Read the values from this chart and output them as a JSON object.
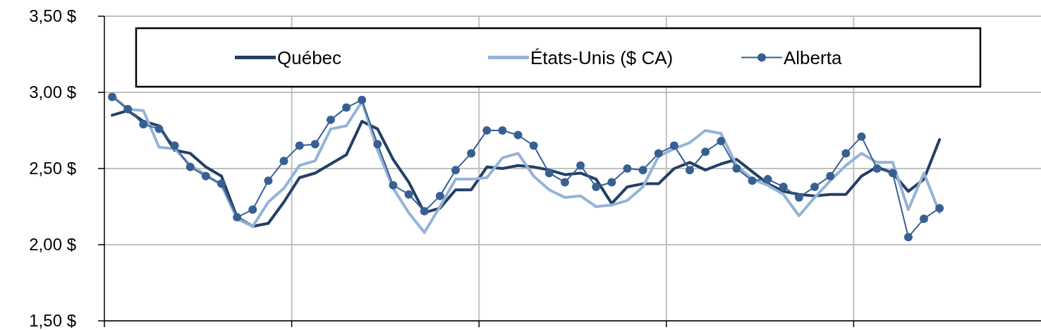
{
  "chart_data": {
    "type": "line",
    "categories": [
      null,
      null,
      null,
      null,
      null,
      null,
      null,
      null,
      null,
      null,
      null,
      null,
      null,
      null,
      null,
      null,
      null,
      null,
      null,
      null,
      null,
      null,
      null,
      null,
      null,
      null,
      null,
      null,
      null,
      null,
      null,
      null,
      null,
      null,
      null,
      null,
      null,
      null,
      null,
      null,
      null,
      null,
      null,
      null,
      null,
      null,
      null,
      null,
      null,
      null,
      null,
      null,
      null,
      null,
      null,
      null,
      null,
      null,
      null,
      null
    ],
    "ylim": [
      1.5,
      3.5
    ],
    "yticks": [
      {
        "value": 1.5,
        "label": "1,50  $"
      },
      {
        "value": 2,
        "label": "2,00  $"
      },
      {
        "value": 2.5,
        "label": "2,50  $"
      },
      {
        "value": 3,
        "label": "3,00  $"
      },
      {
        "value": 3.5,
        "label": "3,50  $"
      }
    ],
    "grid": true,
    "legend": "top",
    "series": [
      {
        "name": "Québec",
        "color": "#243f64",
        "marker": "none",
        "values": [
          2.85,
          2.88,
          2.81,
          2.78,
          2.62,
          2.6,
          2.51,
          2.45,
          2.18,
          2.12,
          2.14,
          2.28,
          2.44,
          2.47,
          2.53,
          2.59,
          2.81,
          2.76,
          2.56,
          2.41,
          2.21,
          2.24,
          2.36,
          2.36,
          2.51,
          2.5,
          2.52,
          2.51,
          2.49,
          2.46,
          2.47,
          2.43,
          2.27,
          2.38,
          2.4,
          2.4,
          2.5,
          2.54,
          2.49,
          2.53,
          2.56,
          2.48,
          2.4,
          2.35,
          2.33,
          2.32,
          2.33,
          2.33,
          2.45,
          2.51,
          2.47,
          2.35,
          2.43,
          2.69,
          null,
          null,
          null,
          null,
          null,
          null
        ]
      },
      {
        "name": "États-Unis ($ CA)",
        "color": "#95b3d7",
        "marker": "none",
        "values": [
          2.98,
          2.89,
          2.88,
          2.64,
          2.63,
          2.52,
          2.46,
          2.39,
          2.17,
          2.12,
          2.28,
          2.37,
          2.52,
          2.55,
          2.76,
          2.78,
          2.94,
          2.62,
          2.37,
          2.21,
          2.08,
          2.25,
          2.43,
          2.43,
          2.44,
          2.57,
          2.6,
          2.45,
          2.36,
          2.31,
          2.32,
          2.25,
          2.26,
          2.29,
          2.38,
          2.58,
          2.63,
          2.67,
          2.75,
          2.73,
          2.52,
          2.43,
          2.39,
          2.33,
          2.19,
          2.31,
          2.42,
          2.52,
          2.6,
          2.54,
          2.54,
          2.23,
          2.47,
          2.21,
          null,
          null,
          null,
          null,
          null,
          null
        ]
      },
      {
        "name": "Alberta",
        "color": "#376092",
        "marker": "circle",
        "values": [
          2.97,
          2.89,
          2.79,
          2.76,
          2.65,
          2.51,
          2.45,
          2.4,
          2.18,
          2.23,
          2.42,
          2.55,
          2.65,
          2.66,
          2.82,
          2.9,
          2.95,
          2.66,
          2.39,
          2.33,
          2.22,
          2.32,
          2.49,
          2.6,
          2.75,
          2.75,
          2.72,
          2.65,
          2.47,
          2.41,
          2.52,
          2.38,
          2.41,
          2.5,
          2.49,
          2.6,
          2.65,
          2.49,
          2.61,
          2.68,
          2.5,
          2.42,
          2.43,
          2.38,
          2.31,
          2.38,
          2.45,
          2.6,
          2.71,
          2.5,
          2.47,
          2.05,
          2.17,
          2.24,
          null,
          null,
          null,
          null,
          null,
          null
        ]
      }
    ]
  }
}
